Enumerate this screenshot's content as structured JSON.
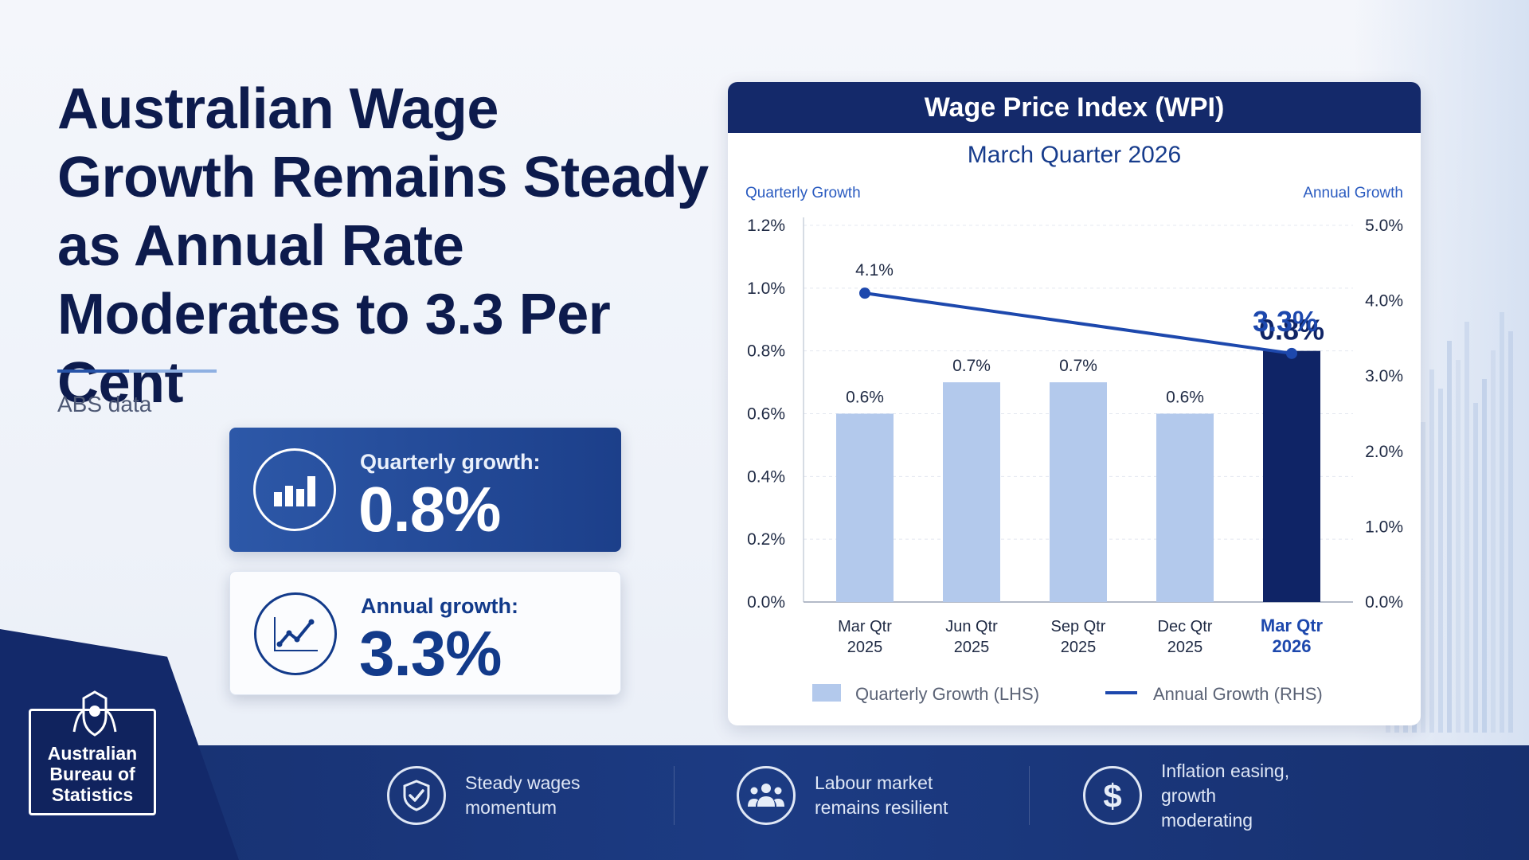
{
  "headline": "Australian Wage Growth Remains Steady as Annual Rate Moderates to 3.3 Per Cent",
  "source": "ABS data",
  "stats": {
    "quarterly": {
      "label": "Quarterly growth:",
      "value": "0.8%",
      "icon": "bar-chart-icon"
    },
    "annual": {
      "label": "Annual growth:",
      "value": "3.3%",
      "icon": "line-chart-icon"
    }
  },
  "chart_data": {
    "type": "bar",
    "title": "Wage Price Index (WPI)",
    "subtitle": "March Quarter 2026",
    "categories": [
      [
        "Mar Qtr",
        "2025"
      ],
      [
        "Jun Qtr",
        "2025"
      ],
      [
        "Sep Qtr",
        "2025"
      ],
      [
        "Dec Qtr",
        "2025"
      ],
      [
        "Mar Qtr",
        "2026"
      ]
    ],
    "y_left_title": "Quarterly Growth",
    "y_right_title": "Annual Growth",
    "y_left_ticks": [
      "0.0%",
      "0.2%",
      "0.4%",
      "0.6%",
      "0.8%",
      "1.0%",
      "1.2%"
    ],
    "y_right_ticks": [
      "0.0%",
      "1.0%",
      "2.0%",
      "3.0%",
      "4.0%",
      "5.0%"
    ],
    "ylim_left": [
      0,
      1.2
    ],
    "ylim_right": [
      0,
      5.0
    ],
    "series": [
      {
        "name": "Quarterly Growth (LHS)",
        "type": "bar",
        "axis": "left",
        "values": [
          0.6,
          0.7,
          0.7,
          0.6,
          0.8
        ],
        "labels": [
          "0.6%",
          "0.7%",
          "0.7%",
          "0.6%",
          "0.8%"
        ]
      },
      {
        "name": "Annual Growth (RHS)",
        "type": "line",
        "axis": "right",
        "values": [
          4.1,
          3.9,
          3.7,
          3.5,
          3.3
        ],
        "labels": [
          "4.1%",
          "",
          "",
          "",
          "3.3%"
        ]
      }
    ],
    "colors": {
      "bar": "#b3c9ec",
      "bar_highlight": "#0f2466",
      "line": "#1d48ad",
      "axis_title": "#2a5bc0"
    },
    "grid": true,
    "legend": "bottom"
  },
  "footer": {
    "logo_text": [
      "Australian",
      "Bureau of",
      "Statistics"
    ],
    "items": [
      {
        "icon": "shield-check-icon",
        "text": [
          "Steady wages",
          "momentum"
        ]
      },
      {
        "icon": "people-icon",
        "text": [
          "Labour market",
          "remains resilient"
        ]
      },
      {
        "icon": "dollar-icon",
        "text": [
          "Inflation easing,",
          "growth moderating"
        ]
      }
    ]
  }
}
